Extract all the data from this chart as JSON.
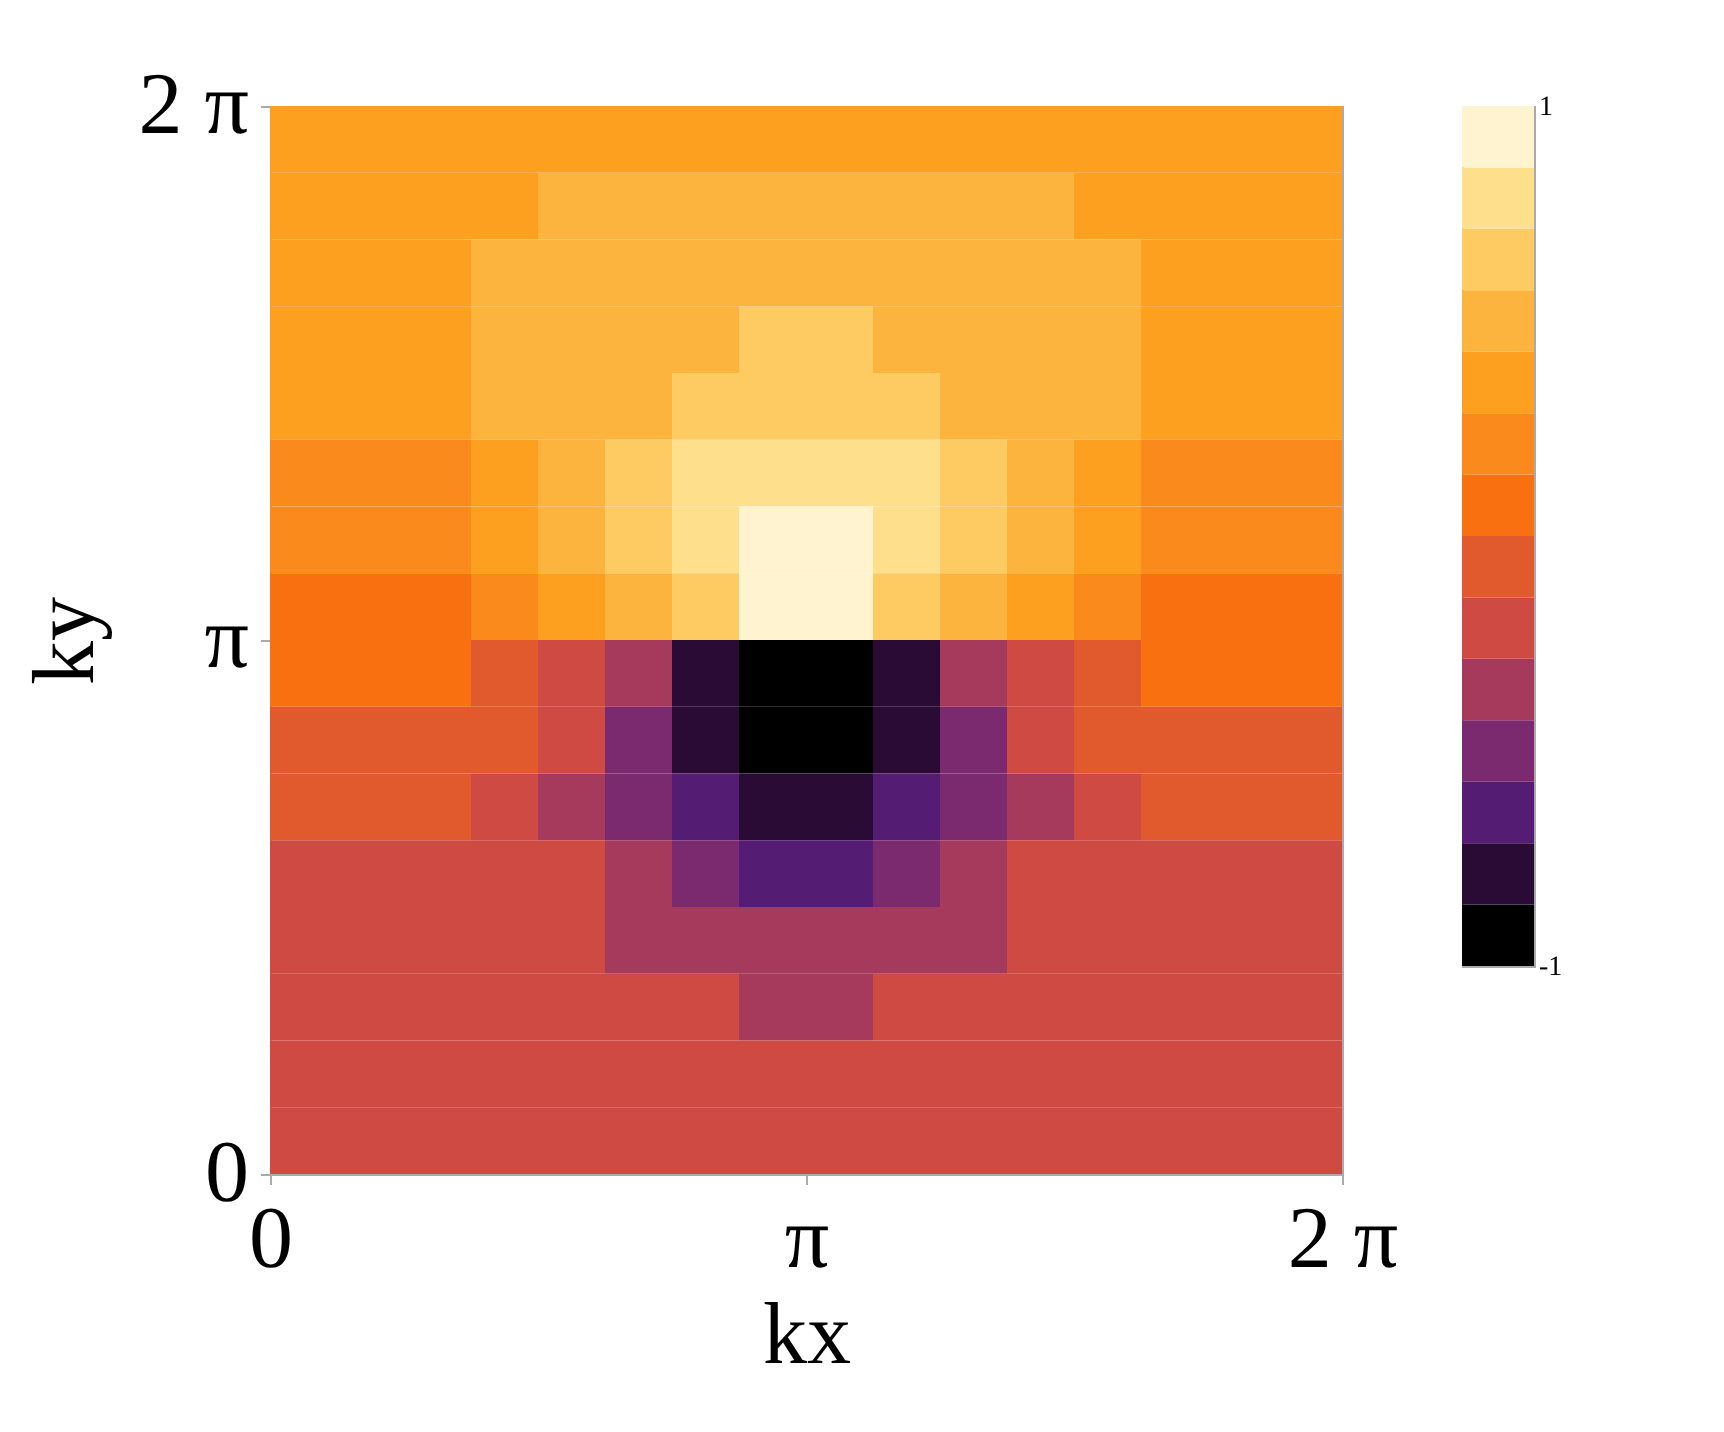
{
  "chart_data": {
    "type": "heatmap",
    "xlabel": "kx",
    "ylabel": "ky",
    "xlim": [
      0,
      6.2832
    ],
    "ylim": [
      0,
      6.2832
    ],
    "xticks": [
      0,
      {
        "value": 3.1416,
        "label": "π"
      },
      {
        "value": 6.2832,
        "label": "2 π"
      }
    ],
    "yticks": [
      0,
      {
        "value": 3.1416,
        "label": "π"
      },
      {
        "value": 6.2832,
        "label": "2 π"
      }
    ],
    "clim": [
      -1,
      1
    ],
    "cticks": [
      -1,
      1
    ],
    "colors": [
      "#000000",
      "#2a0b36",
      "#541c72",
      "#7b2a70",
      "#a63a5c",
      "#d04a44",
      "#e05a2e",
      "#f8700f",
      "#fb8a1c",
      "#fda020",
      "#fdb43e",
      "#fecb62",
      "#fee08c",
      "#fff3d0"
    ],
    "cells": [
      [
        0.36,
        0.36,
        0.36,
        0.36,
        0.36,
        0.36,
        0.36,
        0.36,
        0.36,
        0.36,
        0.36,
        0.36,
        0.36,
        0.36,
        0.36,
        0.36
      ],
      [
        0.36,
        0.36,
        0.36,
        0.36,
        0.5,
        0.5,
        0.5,
        0.5,
        0.5,
        0.5,
        0.5,
        0.5,
        0.36,
        0.36,
        0.36,
        0.36
      ],
      [
        0.36,
        0.36,
        0.36,
        0.5,
        0.5,
        0.5,
        0.55,
        0.55,
        0.55,
        0.55,
        0.5,
        0.5,
        0.5,
        0.36,
        0.36,
        0.36
      ],
      [
        0.36,
        0.36,
        0.36,
        0.5,
        0.5,
        0.5,
        0.57,
        0.64,
        0.64,
        0.57,
        0.5,
        0.5,
        0.5,
        0.36,
        0.36,
        0.36
      ],
      [
        0.3,
        0.3,
        0.36,
        0.5,
        0.5,
        0.57,
        0.64,
        0.68,
        0.68,
        0.64,
        0.57,
        0.5,
        0.5,
        0.36,
        0.3,
        0.3
      ],
      [
        0.21,
        0.21,
        0.21,
        0.4,
        0.52,
        0.64,
        0.72,
        0.79,
        0.79,
        0.72,
        0.64,
        0.52,
        0.4,
        0.21,
        0.21,
        0.21
      ],
      [
        0.15,
        0.15,
        0.21,
        0.36,
        0.5,
        0.64,
        0.8,
        0.93,
        0.93,
        0.8,
        0.64,
        0.5,
        0.36,
        0.21,
        0.15,
        0.15
      ],
      [
        0.07,
        0.07,
        0.1,
        0.2,
        0.3,
        0.45,
        0.7,
        0.93,
        0.93,
        0.7,
        0.45,
        0.3,
        0.2,
        0.1,
        0.07,
        0.07
      ],
      [
        0.07,
        0.07,
        0.05,
        -0.1,
        -0.2,
        -0.4,
        -0.75,
        -0.93,
        -0.93,
        -0.75,
        -0.4,
        -0.2,
        -0.1,
        0.05,
        0.07,
        0.07
      ],
      [
        -0.05,
        -0.05,
        -0.05,
        -0.1,
        -0.25,
        -0.5,
        -0.72,
        -0.93,
        -0.93,
        -0.72,
        -0.5,
        -0.25,
        -0.1,
        -0.05,
        -0.05,
        -0.05
      ],
      [
        -0.07,
        -0.07,
        -0.1,
        -0.21,
        -0.36,
        -0.5,
        -0.64,
        -0.8,
        -0.8,
        -0.64,
        -0.5,
        -0.36,
        -0.21,
        -0.1,
        -0.07,
        -0.07
      ],
      [
        -0.16,
        -0.16,
        -0.16,
        -0.21,
        -0.22,
        -0.36,
        -0.5,
        -0.64,
        -0.64,
        -0.5,
        -0.36,
        -0.22,
        -0.21,
        -0.16,
        -0.16,
        -0.16
      ],
      [
        -0.18,
        -0.18,
        -0.18,
        -0.22,
        -0.28,
        -0.33,
        -0.38,
        -0.4,
        -0.4,
        -0.38,
        -0.33,
        -0.28,
        -0.22,
        -0.18,
        -0.18,
        -0.18
      ],
      [
        -0.17,
        -0.17,
        -0.17,
        -0.2,
        -0.23,
        -0.25,
        -0.27,
        -0.3,
        -0.3,
        -0.27,
        -0.25,
        -0.23,
        -0.2,
        -0.17,
        -0.17,
        -0.17
      ],
      [
        -0.18,
        -0.18,
        -0.18,
        -0.18,
        -0.18,
        -0.18,
        -0.2,
        -0.2,
        -0.2,
        -0.2,
        -0.18,
        -0.18,
        -0.18,
        -0.18,
        -0.18,
        -0.18
      ],
      [
        -0.17,
        -0.17,
        -0.17,
        -0.17,
        -0.17,
        -0.17,
        -0.17,
        -0.17,
        -0.17,
        -0.17,
        -0.17,
        -0.17,
        -0.17,
        -0.17,
        -0.17,
        -0.17
      ]
    ]
  }
}
